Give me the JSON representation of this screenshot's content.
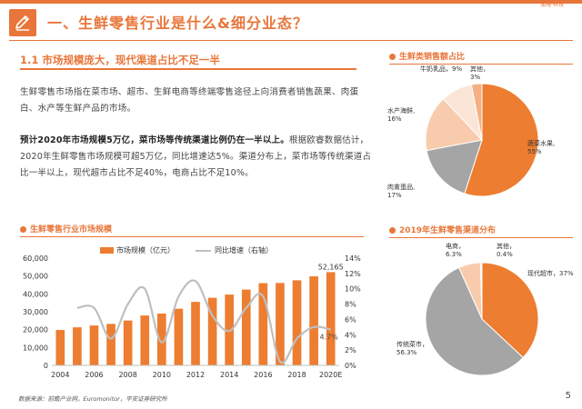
{
  "header": {
    "brand": "策略·科技",
    "title": "一、生鲜零售行业是什么&细分业态？",
    "accent_color": "#e8763a",
    "icon": "pencil-icon"
  },
  "section": {
    "heading": "1.1  市场规模庞大，现代渠道占比不足一半",
    "para1": "生鲜零售市场指在菜市场、超市、生鲜电商等终端零售途径上向消费者销售蔬果、肉蛋白、水产等生鲜产品的市场。",
    "para2_bold": "预计2020年市场规模5万亿，菜市场等传统渠道比例仍在一半以上。",
    "para2_rest": "根据欧睿数据估计，2020年生鲜零售市场规模可超5万亿，同比增速达5%。渠道分布上，菜市场等传统渠道占比一半以上，现代超市占比不足40%，电商占比不足10%。"
  },
  "footer": {
    "source": "数据来源：前瞻产业网，Euromonitor，平安证券研究所",
    "page": "5"
  },
  "chart_data": [
    {
      "type": "pie",
      "title": "生鲜类销售额占比",
      "slices": [
        {
          "label": "蔬菜水果,\n55%",
          "value": 55,
          "color": "#ed7d31"
        },
        {
          "label": "肉禽蛋品,\n17%",
          "value": 17,
          "color": "#a5a5a5"
        },
        {
          "label": "水产海鲜,\n16%",
          "value": 16,
          "color": "#f8cbad"
        },
        {
          "label": "牛奶乳品，9%",
          "value": 9,
          "color": "#fbe5d6"
        },
        {
          "label": "其他，\n3%",
          "value": 3,
          "color": "#f4b183"
        }
      ]
    },
    {
      "type": "pie",
      "title": "2019年生鲜零售渠道分布",
      "slices": [
        {
          "label": "现代超市，37%",
          "value": 37,
          "color": "#ed7d31"
        },
        {
          "label": "传统菜市，\n56.3%",
          "value": 56.3,
          "color": "#a5a5a5"
        },
        {
          "label": "电商，\n6.3%",
          "value": 6.3,
          "color": "#f8cbad"
        },
        {
          "label": "其他，\n0.4%",
          "value": 0.4,
          "color": "#fbe5d6"
        }
      ]
    },
    {
      "type": "bar",
      "title": "生鲜零售行业市场规模",
      "categories": [
        "2004",
        "2005",
        "2006",
        "2007",
        "2008",
        "2009",
        "2010",
        "2011",
        "2012",
        "2013",
        "2014",
        "2015",
        "2016",
        "2017",
        "2018",
        "2019",
        "2020E"
      ],
      "x_tick_labels": [
        "2004",
        "2006",
        "2008",
        "2010",
        "2012",
        "2014",
        "2016",
        "2018",
        "2020E"
      ],
      "series": [
        {
          "name": "市场规模（亿元）",
          "type": "bar",
          "axis": "left",
          "color": "#ed7d31",
          "values": [
            19800,
            21300,
            22300,
            23200,
            25100,
            27900,
            29000,
            31700,
            35500,
            37800,
            39600,
            42400,
            46000,
            46100,
            47600,
            49800,
            52165
          ]
        },
        {
          "name": "同比增速（右轴）",
          "type": "line",
          "axis": "right",
          "color": "#bfbfbf",
          "values": [
            null,
            7.5,
            7.5,
            3.5,
            8.0,
            10.0,
            3.0,
            9.0,
            11.0,
            6.5,
            4.5,
            7.5,
            9.0,
            0.5,
            3.5,
            5.0,
            4.7
          ]
        }
      ],
      "left_axis": {
        "min": 0,
        "max": 60000,
        "ticks": [
          "0",
          "10,000",
          "20,000",
          "30,000",
          "40,000",
          "50,000",
          "60,000"
        ]
      },
      "right_axis": {
        "min": 0,
        "max": 14,
        "ticks": [
          "0%",
          "2%",
          "4%",
          "6%",
          "8%",
          "10%",
          "12%",
          "14%"
        ]
      },
      "annotations": {
        "last_bar": "52,165",
        "last_growth": "4.7%"
      }
    }
  ]
}
